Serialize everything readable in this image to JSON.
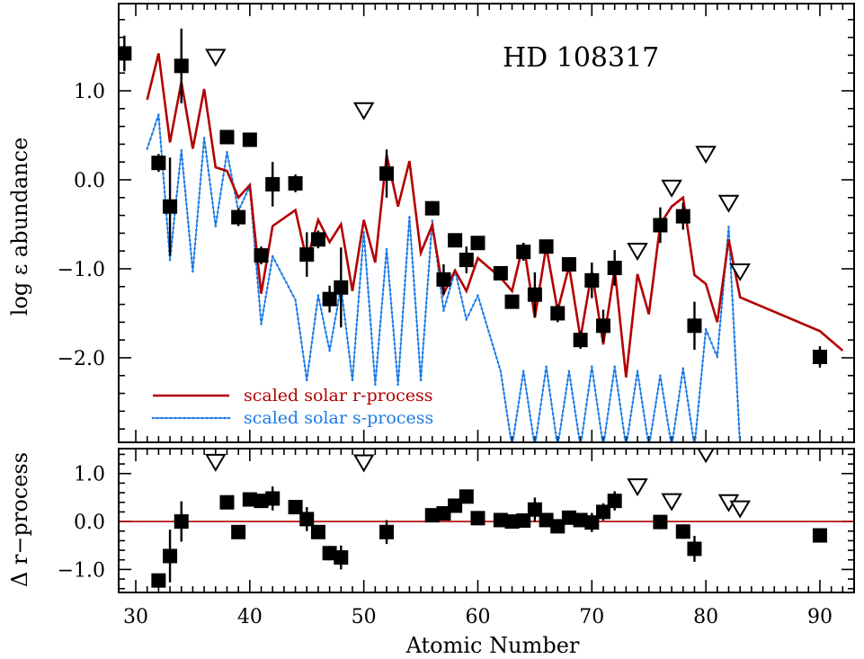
{
  "chart_data": [
    {
      "type": "scatter",
      "panel": "top",
      "title": "HD 108317",
      "xlabel": "",
      "ylabel": "log ε abundance",
      "xlim": [
        28.5,
        93
      ],
      "ylim": [
        -2.95,
        1.98
      ],
      "x_ticks": [
        "30",
        "40",
        "50",
        "60",
        "70",
        "80",
        "90"
      ],
      "y_ticks": [
        "1.0",
        "0.0",
        "−1.0",
        "−2.0"
      ],
      "y_tick_values": [
        1.0,
        0.0,
        -1.0,
        -2.0
      ],
      "legend": {
        "position": "bottom-left",
        "entries": [
          {
            "label": "scaled solar r-process",
            "color": "#b30000"
          },
          {
            "label": "scaled solar s-process",
            "color": "#1a7ae6"
          }
        ]
      },
      "series": [
        {
          "kind": "detections",
          "points": [
            {
              "x": 29,
              "y": 1.42,
              "err": 0.2
            },
            {
              "x": 32,
              "y": 0.19,
              "err": 0.1
            },
            {
              "x": 33,
              "y": -0.3,
              "err": 0.55
            },
            {
              "x": 34,
              "y": 1.28,
              "err": 0.42
            },
            {
              "x": 38,
              "y": 0.48,
              "err": 0.08
            },
            {
              "x": 39,
              "y": -0.42,
              "err": 0.1
            },
            {
              "x": 40,
              "y": 0.45,
              "err": 0.08
            },
            {
              "x": 41,
              "y": -0.85,
              "err": 0.1
            },
            {
              "x": 42,
              "y": -0.05,
              "err": 0.25
            },
            {
              "x": 44,
              "y": -0.04,
              "err": 0.1
            },
            {
              "x": 45,
              "y": -0.84,
              "err": 0.25
            },
            {
              "x": 46,
              "y": -0.67,
              "err": 0.1
            },
            {
              "x": 47,
              "y": -1.34,
              "err": 0.15
            },
            {
              "x": 48,
              "y": -1.21,
              "err": 0.45
            },
            {
              "x": 52,
              "y": 0.07,
              "err": 0.27
            },
            {
              "x": 56,
              "y": -0.32,
              "err": 0.08
            },
            {
              "x": 57,
              "y": -1.12,
              "err": 0.17
            },
            {
              "x": 58,
              "y": -0.68,
              "err": 0.05
            },
            {
              "x": 59,
              "y": -0.9,
              "err": 0.15
            },
            {
              "x": 60,
              "y": -0.71,
              "err": 0.05
            },
            {
              "x": 62,
              "y": -1.05,
              "err": 0.08
            },
            {
              "x": 63,
              "y": -1.37,
              "err": 0.05
            },
            {
              "x": 64,
              "y": -0.81,
              "err": 0.1
            },
            {
              "x": 65,
              "y": -1.29,
              "err": 0.25
            },
            {
              "x": 66,
              "y": -0.75,
              "err": 0.05
            },
            {
              "x": 67,
              "y": -1.5,
              "err": 0.1
            },
            {
              "x": 68,
              "y": -0.95,
              "err": 0.05
            },
            {
              "x": 69,
              "y": -1.8,
              "err": 0.1
            },
            {
              "x": 70,
              "y": -1.13,
              "err": 0.2
            },
            {
              "x": 71,
              "y": -1.64,
              "err": 0.18
            },
            {
              "x": 72,
              "y": -0.99,
              "err": 0.2
            },
            {
              "x": 76,
              "y": -0.51,
              "err": 0.2
            },
            {
              "x": 78,
              "y": -0.41,
              "err": 0.15
            },
            {
              "x": 79,
              "y": -1.64,
              "err": 0.27
            },
            {
              "x": 90,
              "y": -1.99,
              "err": 0.12
            }
          ]
        },
        {
          "kind": "upper_limits",
          "points": [
            {
              "x": 37,
              "y": 1.38
            },
            {
              "x": 50,
              "y": 0.78
            },
            {
              "x": 74,
              "y": -0.8
            },
            {
              "x": 77,
              "y": -0.09
            },
            {
              "x": 80,
              "y": 0.29
            },
            {
              "x": 82,
              "y": -0.26
            },
            {
              "x": 83,
              "y": -1.03
            }
          ]
        },
        {
          "kind": "r-process",
          "name": "scaled solar r-process",
          "x": [
            31,
            32,
            33,
            34,
            35,
            36,
            37,
            38,
            39,
            40,
            41,
            42,
            44,
            45,
            46,
            47,
            48,
            49,
            50,
            51,
            52,
            53,
            54,
            55,
            56,
            57,
            58,
            59,
            60,
            62,
            63,
            64,
            65,
            66,
            67,
            68,
            69,
            70,
            71,
            72,
            73,
            74,
            75,
            76,
            77,
            78,
            79,
            80,
            81,
            82,
            83,
            90,
            92
          ],
          "y": [
            0.9,
            1.42,
            0.42,
            1.1,
            0.35,
            1.02,
            0.14,
            0.1,
            -0.2,
            -0.06,
            -1.28,
            -0.52,
            -0.34,
            -0.91,
            -0.45,
            -0.7,
            -0.5,
            -1.25,
            -0.45,
            -0.93,
            0.28,
            -0.3,
            0.21,
            -0.82,
            -0.51,
            -1.28,
            -1.02,
            -1.25,
            -0.88,
            -1.1,
            -1.25,
            -0.71,
            -1.55,
            -0.75,
            -1.47,
            -0.97,
            -1.78,
            -1.03,
            -1.85,
            -1.0,
            -2.22,
            -1.06,
            -1.51,
            -0.5,
            -0.3,
            -0.2,
            -1.07,
            -1.17,
            -1.6,
            -0.67,
            -1.32,
            -1.7,
            -1.92
          ]
        },
        {
          "kind": "s-process",
          "name": "scaled solar s-process",
          "x": [
            31,
            32,
            33,
            34,
            35,
            36,
            37,
            38,
            39,
            40,
            41,
            42,
            44,
            45,
            46,
            47,
            48,
            49,
            50,
            51,
            52,
            53,
            54,
            55,
            56,
            57,
            58,
            59,
            60,
            62,
            63,
            64,
            65,
            66,
            67,
            68,
            69,
            70,
            71,
            72,
            73,
            74,
            75,
            76,
            77,
            78,
            79,
            80,
            81,
            82,
            83
          ],
          "y": [
            0.35,
            0.73,
            -0.9,
            0.33,
            -1.03,
            0.47,
            -0.52,
            0.31,
            -0.35,
            -0.07,
            -1.62,
            -0.86,
            -1.35,
            -2.25,
            -1.3,
            -1.92,
            -1.2,
            -2.25,
            -0.59,
            -2.3,
            -0.78,
            -2.3,
            -0.42,
            -2.25,
            -0.46,
            -1.47,
            -1.02,
            -1.57,
            -1.3,
            -2.15,
            -3.0,
            -2.15,
            -3.0,
            -2.1,
            -3.0,
            -2.15,
            -3.0,
            -2.1,
            -3.0,
            -2.1,
            -3.0,
            -2.15,
            -3.0,
            -2.2,
            -3.0,
            -2.12,
            -3.0,
            -1.68,
            -1.99,
            -0.53,
            -3.0
          ]
        }
      ]
    },
    {
      "type": "scatter",
      "panel": "bottom",
      "xlabel": "Atomic Number",
      "ylabel": "Δ r−process",
      "xlim": [
        28.5,
        93
      ],
      "ylim": [
        -1.48,
        1.52
      ],
      "x_ticks": [
        "30",
        "40",
        "50",
        "60",
        "70",
        "80",
        "90"
      ],
      "x_tick_values": [
        30,
        40,
        50,
        60,
        70,
        80,
        90
      ],
      "y_ticks": [
        "1.0",
        "0.0",
        "−1.0"
      ],
      "y_tick_values": [
        1.0,
        0.0,
        -1.0
      ],
      "reference_line": {
        "y": 0.0,
        "color": "#b30000"
      },
      "series": [
        {
          "kind": "detections",
          "points": [
            {
              "x": 32,
              "y": -1.23,
              "err": 0.1
            },
            {
              "x": 33,
              "y": -0.72,
              "err": 0.55
            },
            {
              "x": 34,
              "y": 0.0,
              "err": 0.42
            },
            {
              "x": 38,
              "y": 0.4,
              "err": 0.08
            },
            {
              "x": 39,
              "y": -0.22,
              "err": 0.1
            },
            {
              "x": 40,
              "y": 0.46,
              "err": 0.08
            },
            {
              "x": 41,
              "y": 0.43,
              "err": 0.1
            },
            {
              "x": 42,
              "y": 0.48,
              "err": 0.25
            },
            {
              "x": 44,
              "y": 0.3,
              "err": 0.1
            },
            {
              "x": 45,
              "y": 0.05,
              "err": 0.25
            },
            {
              "x": 46,
              "y": -0.22,
              "err": 0.1
            },
            {
              "x": 47,
              "y": -0.66,
              "err": 0.15
            },
            {
              "x": 48,
              "y": -0.75,
              "err": 0.25
            },
            {
              "x": 52,
              "y": -0.22,
              "err": 0.25
            },
            {
              "x": 56,
              "y": 0.13,
              "err": 0.08
            },
            {
              "x": 57,
              "y": 0.17,
              "err": 0.15
            },
            {
              "x": 58,
              "y": 0.33,
              "err": 0.05
            },
            {
              "x": 59,
              "y": 0.52,
              "err": 0.1
            },
            {
              "x": 60,
              "y": 0.07,
              "err": 0.05
            },
            {
              "x": 62,
              "y": 0.03,
              "err": 0.08
            },
            {
              "x": 63,
              "y": 0.0,
              "err": 0.05
            },
            {
              "x": 64,
              "y": 0.02,
              "err": 0.1
            },
            {
              "x": 65,
              "y": 0.25,
              "err": 0.25
            },
            {
              "x": 66,
              "y": 0.03,
              "err": 0.05
            },
            {
              "x": 67,
              "y": -0.1,
              "err": 0.1
            },
            {
              "x": 68,
              "y": 0.08,
              "err": 0.05
            },
            {
              "x": 69,
              "y": 0.03,
              "err": 0.1
            },
            {
              "x": 70,
              "y": -0.02,
              "err": 0.2
            },
            {
              "x": 71,
              "y": 0.2,
              "err": 0.18
            },
            {
              "x": 72,
              "y": 0.43,
              "err": 0.2
            },
            {
              "x": 76,
              "y": -0.01,
              "err": 0.15
            },
            {
              "x": 78,
              "y": -0.21,
              "err": 0.15
            },
            {
              "x": 79,
              "y": -0.57,
              "err": 0.27
            },
            {
              "x": 90,
              "y": -0.29,
              "err": 0.08
            }
          ]
        },
        {
          "kind": "upper_limits",
          "points": [
            {
              "x": 37,
              "y": 1.24
            },
            {
              "x": 50,
              "y": 1.23
            },
            {
              "x": 74,
              "y": 0.73
            },
            {
              "x": 77,
              "y": 0.42
            },
            {
              "x": 80,
              "y": 1.42
            },
            {
              "x": 82,
              "y": 0.4
            },
            {
              "x": 83,
              "y": 0.27
            }
          ]
        }
      ]
    }
  ]
}
